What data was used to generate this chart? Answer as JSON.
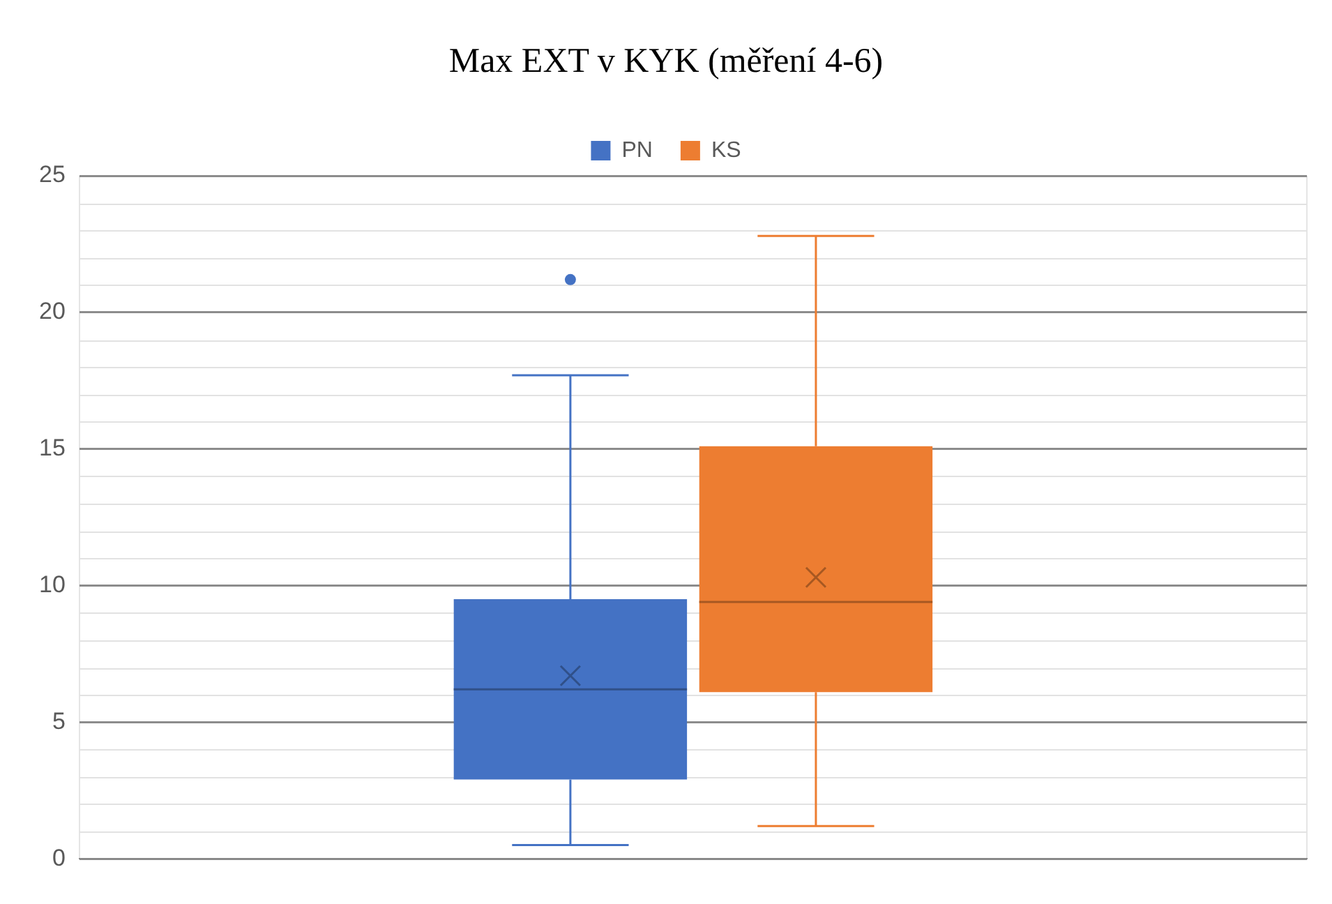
{
  "chart_data": {
    "type": "box",
    "title": "Max EXT v KYK (měření 4-6)",
    "categories": [
      null
    ],
    "series": [
      {
        "name": "PN",
        "color": "#4472c4",
        "boxes": [
          {
            "low": 0.5,
            "q1": 2.9,
            "median": 6.2,
            "q3": 9.5,
            "high": 17.7,
            "mean": 6.7,
            "outliers": [
              21.2
            ]
          }
        ]
      },
      {
        "name": "KS",
        "color": "#ed7d31",
        "boxes": [
          {
            "low": 1.2,
            "q1": 6.1,
            "median": 9.4,
            "q3": 15.1,
            "high": 22.8,
            "mean": 10.3
          }
        ]
      }
    ],
    "ylim": [
      0,
      25
    ],
    "yticks": [
      0,
      5,
      10,
      15,
      20,
      25
    ],
    "grid": true,
    "legend": "top"
  }
}
